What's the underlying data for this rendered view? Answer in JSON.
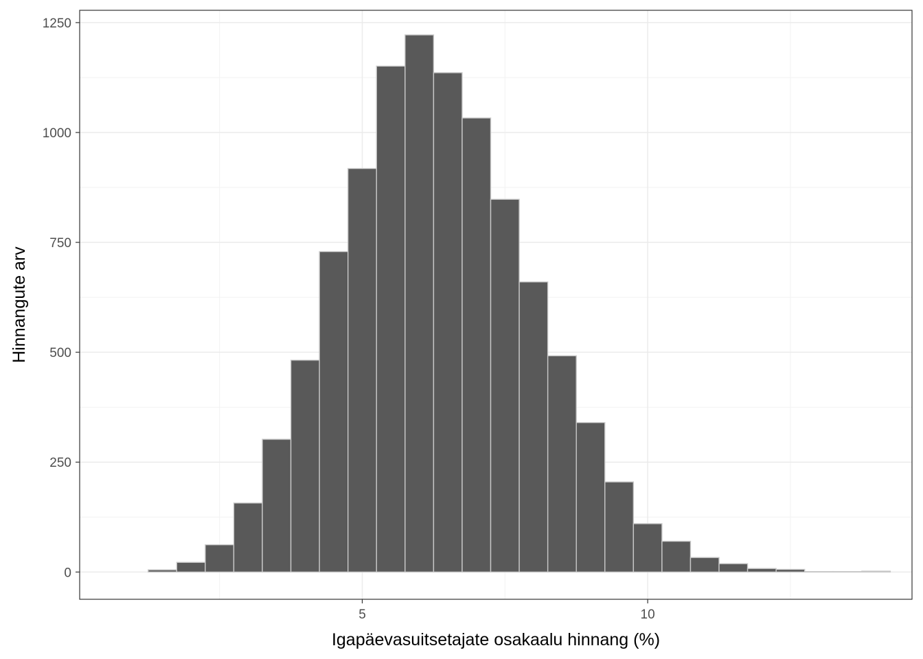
{
  "chart_data": {
    "type": "histogram",
    "xlabel": "Igapäevasuitsetajate osakaalu hinnang (%)",
    "ylabel": "Hinnangute arv",
    "xlim": [
      0.05,
      14.63
    ],
    "ylim": [
      -62,
      1278
    ],
    "x_ticks": [
      5,
      10
    ],
    "x_tick_labels": [
      "5",
      "10"
    ],
    "y_ticks": [
      0,
      250,
      500,
      750,
      1000,
      1250
    ],
    "y_tick_labels": [
      "0",
      "250",
      "500",
      "750",
      "1000",
      "1250"
    ],
    "bin_width": 0.5,
    "bins": [
      {
        "x0": 1.25,
        "x1": 1.75,
        "count": 5
      },
      {
        "x0": 1.75,
        "x1": 2.25,
        "count": 22
      },
      {
        "x0": 2.25,
        "x1": 2.75,
        "count": 62
      },
      {
        "x0": 2.75,
        "x1": 3.25,
        "count": 157
      },
      {
        "x0": 3.25,
        "x1": 3.75,
        "count": 302
      },
      {
        "x0": 3.75,
        "x1": 4.25,
        "count": 482
      },
      {
        "x0": 4.25,
        "x1": 4.75,
        "count": 729
      },
      {
        "x0": 4.75,
        "x1": 5.25,
        "count": 918
      },
      {
        "x0": 5.25,
        "x1": 5.75,
        "count": 1151
      },
      {
        "x0": 5.75,
        "x1": 6.25,
        "count": 1222
      },
      {
        "x0": 6.25,
        "x1": 6.75,
        "count": 1136
      },
      {
        "x0": 6.75,
        "x1": 7.25,
        "count": 1033
      },
      {
        "x0": 7.25,
        "x1": 7.75,
        "count": 848
      },
      {
        "x0": 7.75,
        "x1": 8.25,
        "count": 660
      },
      {
        "x0": 8.25,
        "x1": 8.75,
        "count": 492
      },
      {
        "x0": 8.75,
        "x1": 9.25,
        "count": 340
      },
      {
        "x0": 9.25,
        "x1": 9.75,
        "count": 205
      },
      {
        "x0": 9.75,
        "x1": 10.25,
        "count": 110
      },
      {
        "x0": 10.25,
        "x1": 10.75,
        "count": 70
      },
      {
        "x0": 10.75,
        "x1": 11.25,
        "count": 33
      },
      {
        "x0": 11.25,
        "x1": 11.75,
        "count": 19
      },
      {
        "x0": 11.75,
        "x1": 12.25,
        "count": 8
      },
      {
        "x0": 12.25,
        "x1": 12.75,
        "count": 6
      },
      {
        "x0": 12.75,
        "x1": 13.25,
        "count": 1
      },
      {
        "x0": 13.25,
        "x1": 13.75,
        "count": 1
      },
      {
        "x0": 13.75,
        "x1": 14.25,
        "count": 2
      }
    ],
    "grid": true,
    "theme": "bw",
    "colors": {
      "bar_fill": "#595959",
      "bar_stroke": "#c8c8c8",
      "grid_major": "#ebebeb",
      "grid_minor": "#f2f2f2",
      "panel_border": "#333333",
      "tick_text": "#4d4d4d"
    }
  }
}
